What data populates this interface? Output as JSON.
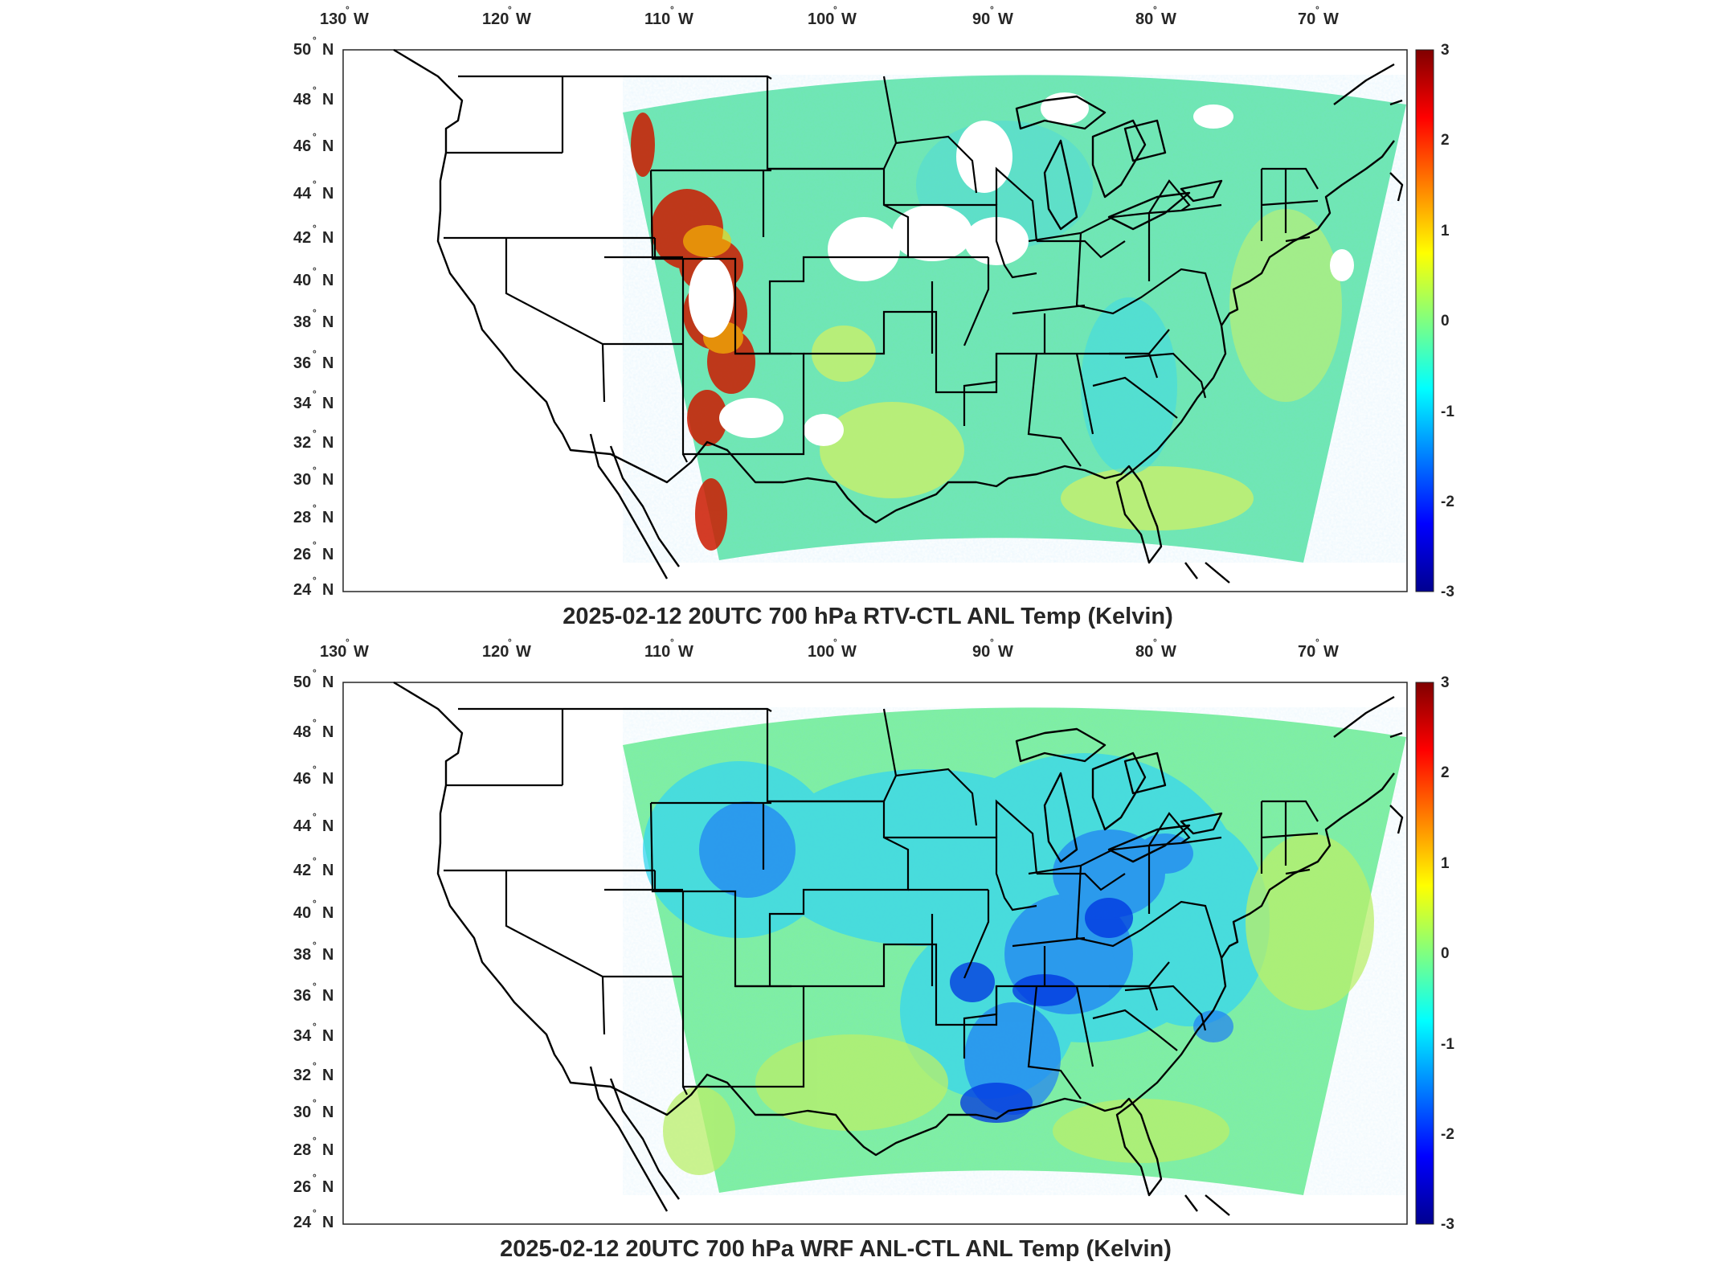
{
  "figure": {
    "colormap": "jet",
    "colorbar": {
      "min": -3,
      "max": 3,
      "ticks": [
        "3",
        "2",
        "1",
        "0",
        "-1",
        "-2",
        "-3"
      ]
    },
    "longitude_ticks": [
      "130",
      "120",
      "110",
      "100",
      "90",
      "80",
      "70"
    ],
    "longitude_hemisphere": "W",
    "latitude_ticks": [
      "50",
      "48",
      "46",
      "44",
      "42",
      "40",
      "38",
      "36",
      "34",
      "32",
      "30",
      "28",
      "26",
      "24"
    ],
    "latitude_hemisphere": "N",
    "degree_symbol": "°"
  },
  "panels": [
    {
      "id": "top",
      "title": "2025-02-12 20UTC 700 hPa RTV-CTL ANL Temp (Kelvin)",
      "field": "RTV minus CTL analysis temperature difference at 700 hPa",
      "typical_value": 0,
      "notes": "mostly near 0 (green/cyan); scattered strong positive values (red) over Rocky Mountains; white gaps with missing data"
    },
    {
      "id": "bottom",
      "title": "2025-02-12 20UTC 700 hPa WRF ANL-CTL ANL Temp (Kelvin)",
      "field": "WRF analysis minus CTL analysis temperature difference at 700 hPa",
      "typical_value": -0.8,
      "notes": "broad negative values (blue) over central and eastern US, strongest near lower Mississippi valley and Gulf coast"
    }
  ]
}
